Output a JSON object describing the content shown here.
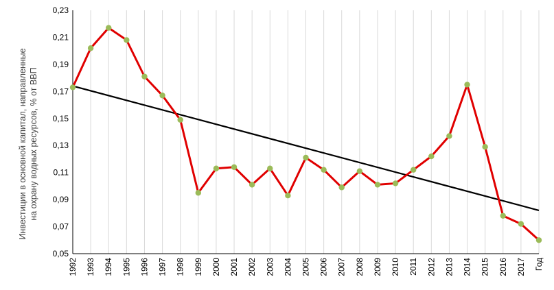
{
  "chart_data": {
    "type": "line",
    "title": "",
    "xlabel": "",
    "ylabel_lines": [
      "Инвестиции в основной капитал, направленные",
      "на охрану водных ресурсов, % от ВВП"
    ],
    "x_ticks": [
      "1992",
      "1993",
      "1994",
      "1995",
      "1996",
      "1997",
      "1998",
      "1999",
      "2000",
      "2001",
      "2002",
      "2003",
      "2004",
      "2005",
      "2006",
      "2007",
      "2008",
      "2009",
      "2010",
      "2011",
      "2012",
      "2013",
      "2014",
      "2015",
      "2016",
      "2017",
      "Год"
    ],
    "y_ticks": [
      "0,05",
      "0,07",
      "0,09",
      "0,11",
      "0,13",
      "0,15",
      "0,17",
      "0,19",
      "0,21",
      "0,23"
    ],
    "ylim": [
      0.05,
      0.23
    ],
    "grid": {
      "vertical": true,
      "horizontal": false
    },
    "legend": "none",
    "series": [
      {
        "values": [
          0.173,
          0.202,
          0.217,
          0.208,
          0.181,
          0.167,
          0.149,
          0.095,
          0.113,
          0.114,
          0.101,
          0.113,
          0.093,
          0.121,
          0.112,
          0.099,
          0.111,
          0.101,
          0.102,
          0.112,
          0.122,
          0.137,
          0.175,
          0.129,
          0.078,
          0.072,
          0.06
        ],
        "line_color": "#e00000",
        "marker_color": "#9bbb59"
      }
    ],
    "trendline": {
      "type": "linear",
      "start": 0.174,
      "end": 0.082,
      "color": "#000000"
    }
  }
}
